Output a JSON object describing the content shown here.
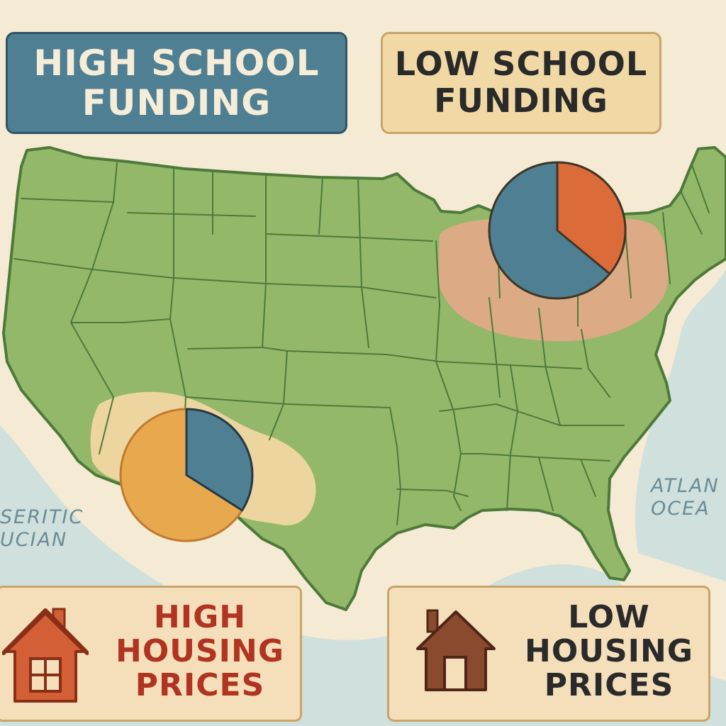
{
  "banners": {
    "high_school_funding": [
      "HIGH SCHOOL",
      "FUNDING"
    ],
    "low_school_funding": [
      "LOW SCHOOL",
      "FUNDING"
    ]
  },
  "cards": {
    "high_housing": [
      "HIGH",
      "HOUSING",
      "PRICES"
    ],
    "low_housing": [
      "LOW",
      "HOUSING",
      "PRICES"
    ]
  },
  "ocean_labels": {
    "pacific": [
      "SERITIC",
      "UCIAN"
    ],
    "atlantic": [
      "ATLAN",
      "OCEA"
    ]
  },
  "pies": {
    "northeast": {
      "blue_fraction": 0.64,
      "orange_fraction": 0.36
    },
    "southwest": {
      "blue_fraction": 0.34,
      "orange_fraction": 0.66
    }
  },
  "colors": {
    "land": "#93b86a",
    "land_border": "#4d7a3a",
    "ocean": "#cfe0dd",
    "background": "#f5ead3",
    "high_funding_blue": "#4e7f93",
    "low_funding_orange": "#dc6b3a",
    "southwest_orange": "#e8a84e",
    "northeast_highlight": "#e9a88a",
    "southwest_highlight": "#f1d6a3",
    "high_price_red": "#b03421",
    "low_price_brown": "#8a4a2e"
  },
  "icons": {
    "high_house": "house-icon",
    "low_house": "house-icon"
  }
}
